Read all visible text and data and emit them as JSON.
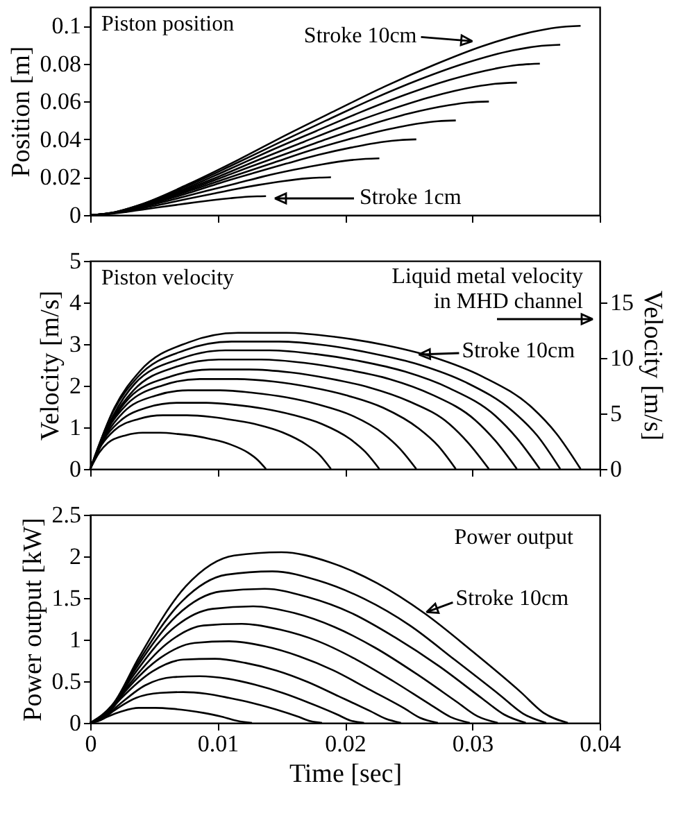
{
  "chart_data": [
    {
      "type": "line",
      "ylabel": "Position [m]",
      "xlim": [
        0,
        0.04
      ],
      "xticks": [
        0,
        0.01,
        0.02,
        0.03,
        0.04
      ],
      "ylim": [
        0,
        0.11
      ],
      "yticks": [
        0,
        0.02,
        0.04,
        0.06,
        0.08,
        0.1
      ],
      "tick_labels": "y",
      "grid": false,
      "legend": false,
      "marker": "none",
      "line_style": "solid",
      "annotations": [
        "Piston position",
        {
          "text": "Stroke 10cm",
          "x": 0.03,
          "y": 0.0919
        },
        "Stroke 1cm"
      ],
      "series": [
        {
          "color": "#000000",
          "x": [
            0,
            0.0007,
            0.0014,
            0.0028,
            0.0041,
            0.0055,
            0.0069,
            0.0083,
            0.0096,
            0.011,
            0.0124,
            0.0131,
            0.0138
          ],
          "values": [
            0,
            0.0002,
            0.0005,
            0.0016,
            0.0029,
            0.0042,
            0.0055,
            0.0068,
            0.0079,
            0.0089,
            0.0097,
            0.0099,
            0.01
          ]
        },
        {
          "color": "#000000",
          "x": [
            0,
            0.0009,
            0.0019,
            0.0038,
            0.0057,
            0.0076,
            0.0095,
            0.0113,
            0.0132,
            0.0151,
            0.017,
            0.018,
            0.0189
          ],
          "values": [
            0,
            0.0003,
            0.0011,
            0.0033,
            0.0058,
            0.0085,
            0.0111,
            0.0136,
            0.0159,
            0.0179,
            0.0194,
            0.0198,
            0.02
          ]
        },
        {
          "color": "#000000",
          "x": [
            0,
            0.0011,
            0.0023,
            0.0045,
            0.0068,
            0.0091,
            0.0114,
            0.0136,
            0.0159,
            0.0182,
            0.0204,
            0.0216,
            0.0227
          ],
          "values": [
            0,
            0.0005,
            0.0016,
            0.0049,
            0.0087,
            0.0127,
            0.0166,
            0.0204,
            0.0238,
            0.0268,
            0.029,
            0.0297,
            0.03
          ]
        },
        {
          "color": "#000000",
          "x": [
            0,
            0.0013,
            0.0026,
            0.0051,
            0.0077,
            0.0102,
            0.0128,
            0.0154,
            0.0179,
            0.0205,
            0.023,
            0.0243,
            0.0256
          ],
          "values": [
            0,
            0.0006,
            0.0022,
            0.0065,
            0.0116,
            0.017,
            0.0222,
            0.0272,
            0.0318,
            0.0357,
            0.0387,
            0.0396,
            0.04
          ]
        },
        {
          "color": "#000000",
          "x": [
            0,
            0.0014,
            0.0029,
            0.0057,
            0.0086,
            0.0115,
            0.0144,
            0.0172,
            0.0201,
            0.023,
            0.0258,
            0.0273,
            0.0287
          ],
          "values": [
            0,
            0.0008,
            0.0027,
            0.0082,
            0.0146,
            0.0212,
            0.0277,
            0.034,
            0.0397,
            0.0447,
            0.0484,
            0.0496,
            0.05
          ]
        },
        {
          "color": "#000000",
          "x": [
            0,
            0.0016,
            0.0031,
            0.0063,
            0.0094,
            0.0125,
            0.0157,
            0.0188,
            0.0219,
            0.025,
            0.0282,
            0.0297,
            0.0313
          ],
          "values": [
            0,
            0.0009,
            0.0032,
            0.0098,
            0.0175,
            0.0254,
            0.0332,
            0.0407,
            0.0476,
            0.0536,
            0.0581,
            0.0595,
            0.06
          ]
        },
        {
          "color": "#000000",
          "x": [
            0,
            0.0017,
            0.0034,
            0.0067,
            0.0101,
            0.0134,
            0.0168,
            0.0201,
            0.0235,
            0.0268,
            0.0302,
            0.0318,
            0.0335
          ],
          "values": [
            0,
            0.0011,
            0.0038,
            0.0114,
            0.0204,
            0.0297,
            0.0388,
            0.0475,
            0.0556,
            0.0625,
            0.0678,
            0.0694,
            0.07
          ]
        },
        {
          "color": "#000000",
          "x": [
            0,
            0.0018,
            0.0035,
            0.0071,
            0.0106,
            0.0141,
            0.0177,
            0.0212,
            0.0247,
            0.0282,
            0.0318,
            0.0335,
            0.0353
          ],
          "values": [
            0,
            0.0012,
            0.0043,
            0.013,
            0.0233,
            0.0339,
            0.0443,
            0.0543,
            0.0635,
            0.0714,
            0.0774,
            0.0793,
            0.08
          ]
        },
        {
          "color": "#000000",
          "x": [
            0,
            0.0018,
            0.0037,
            0.0074,
            0.0111,
            0.0148,
            0.0185,
            0.0221,
            0.0258,
            0.0295,
            0.0332,
            0.0351,
            0.0369
          ],
          "values": [
            0,
            0.0014,
            0.0049,
            0.0147,
            0.0262,
            0.0382,
            0.0499,
            0.0611,
            0.0715,
            0.0804,
            0.0871,
            0.0892,
            0.09
          ]
        },
        {
          "color": "#000000",
          "x": [
            0,
            0.0019,
            0.0039,
            0.0077,
            0.0116,
            0.0154,
            0.0193,
            0.0231,
            0.027,
            0.0308,
            0.0347,
            0.0366,
            0.0385
          ],
          "values": [
            0,
            0.0015,
            0.0054,
            0.0163,
            0.0291,
            0.0424,
            0.0554,
            0.0679,
            0.0794,
            0.0893,
            0.0968,
            0.0991,
            0.1
          ]
        }
      ]
    },
    {
      "type": "line",
      "ylabel": "Velocity [m/s]",
      "y2label": "Velocity [m/s]",
      "xlim": [
        0,
        0.04
      ],
      "xticks": [
        0,
        0.01,
        0.02,
        0.03,
        0.04
      ],
      "ylim": [
        0,
        5
      ],
      "yticks": [
        0,
        1,
        2,
        3,
        4,
        5
      ],
      "y2lim": [
        0,
        18.74
      ],
      "y2ticks": [
        0,
        5,
        10,
        15
      ],
      "tick_labels": "y",
      "grid": false,
      "legend": false,
      "marker": "none",
      "line_style": "solid",
      "annotations": [
        "Piston velocity",
        "Liquid metal velocity\nin MHD channel",
        {
          "text": "Stroke 10cm",
          "x": 0.0258,
          "y": 2.75
        }
      ],
      "series": [
        {
          "color": "#000000",
          "x": [
            0,
            0.0007,
            0.0014,
            0.0028,
            0.0041,
            0.0055,
            0.0069,
            0.0083,
            0.0096,
            0.011,
            0.0124,
            0.0131,
            0.0138
          ],
          "values": [
            0,
            0.39,
            0.63,
            0.81,
            0.87,
            0.87,
            0.84,
            0.79,
            0.71,
            0.59,
            0.39,
            0.23,
            0
          ]
        },
        {
          "color": "#000000",
          "x": [
            0,
            0.0009,
            0.0019,
            0.0038,
            0.0057,
            0.0076,
            0.0095,
            0.0113,
            0.0132,
            0.0151,
            0.017,
            0.018,
            0.0189
          ],
          "values": [
            0,
            0.58,
            0.93,
            1.2,
            1.29,
            1.29,
            1.25,
            1.17,
            1.06,
            0.88,
            0.58,
            0.34,
            0
          ]
        },
        {
          "color": "#000000",
          "x": [
            0,
            0.0011,
            0.0023,
            0.0045,
            0.0068,
            0.0091,
            0.0114,
            0.0136,
            0.0159,
            0.0182,
            0.0204,
            0.0216,
            0.0227
          ],
          "values": [
            0,
            0.72,
            1.14,
            1.48,
            1.59,
            1.59,
            1.54,
            1.45,
            1.3,
            1.08,
            0.72,
            0.41,
            0
          ]
        },
        {
          "color": "#000000",
          "x": [
            0,
            0.0013,
            0.0026,
            0.0051,
            0.0077,
            0.0102,
            0.0128,
            0.0154,
            0.0179,
            0.0205,
            0.023,
            0.0243,
            0.0256
          ],
          "values": [
            0,
            0.85,
            1.36,
            1.76,
            1.89,
            1.89,
            1.83,
            1.72,
            1.55,
            1.29,
            0.85,
            0.49,
            0
          ]
        },
        {
          "color": "#000000",
          "x": [
            0,
            0.0014,
            0.0029,
            0.0057,
            0.0086,
            0.0115,
            0.0144,
            0.0172,
            0.0201,
            0.023,
            0.0258,
            0.0273,
            0.0287
          ],
          "values": [
            0,
            0.97,
            1.56,
            2.01,
            2.16,
            2.16,
            2.1,
            1.97,
            1.77,
            1.47,
            0.97,
            0.56,
            0
          ]
        },
        {
          "color": "#000000",
          "x": [
            0,
            0.0016,
            0.0031,
            0.0063,
            0.0094,
            0.0125,
            0.0157,
            0.0188,
            0.0219,
            0.025,
            0.0282,
            0.0297,
            0.0313
          ],
          "values": [
            0,
            1.08,
            1.72,
            2.22,
            2.39,
            2.39,
            2.32,
            2.17,
            1.96,
            1.63,
            1.08,
            0.62,
            0
          ]
        },
        {
          "color": "#000000",
          "x": [
            0,
            0.0017,
            0.0034,
            0.0067,
            0.0101,
            0.0134,
            0.0168,
            0.0201,
            0.0235,
            0.0268,
            0.0302,
            0.0318,
            0.0335
          ],
          "values": [
            0,
            1.18,
            1.89,
            2.45,
            2.63,
            2.63,
            2.55,
            2.39,
            2.16,
            1.79,
            1.18,
            0.68,
            0
          ]
        },
        {
          "color": "#000000",
          "x": [
            0,
            0.0018,
            0.0035,
            0.0071,
            0.0106,
            0.0141,
            0.0177,
            0.0212,
            0.0247,
            0.0282,
            0.0318,
            0.0335,
            0.0353
          ],
          "values": [
            0,
            1.28,
            2.05,
            2.65,
            2.85,
            2.85,
            2.76,
            2.59,
            2.34,
            1.94,
            1.28,
            0.74,
            0
          ]
        },
        {
          "color": "#000000",
          "x": [
            0,
            0.0018,
            0.0037,
            0.0074,
            0.0111,
            0.0148,
            0.0185,
            0.0221,
            0.0258,
            0.0295,
            0.0332,
            0.0351,
            0.0369
          ],
          "values": [
            0,
            1.38,
            2.2,
            2.85,
            3.06,
            3.06,
            2.97,
            2.78,
            2.51,
            2.08,
            1.38,
            0.8,
            0
          ]
        },
        {
          "color": "#000000",
          "x": [
            0,
            0.0019,
            0.0039,
            0.0077,
            0.0116,
            0.0154,
            0.0193,
            0.0231,
            0.027,
            0.0308,
            0.0347,
            0.0366,
            0.0385
          ],
          "values": [
            0,
            1.47,
            2.35,
            3.04,
            3.27,
            3.27,
            3.17,
            2.98,
            2.68,
            2.22,
            1.47,
            0.85,
            0
          ]
        }
      ]
    },
    {
      "type": "line",
      "xlabel": "Time [sec]",
      "ylabel": "Power output [kW]",
      "xlim": [
        0,
        0.04
      ],
      "xticks": [
        0,
        0.01,
        0.02,
        0.03,
        0.04
      ],
      "ylim": [
        0,
        2.5
      ],
      "yticks": [
        0,
        0.5,
        1,
        1.5,
        2,
        2.5
      ],
      "grid": false,
      "legend": false,
      "marker": "none",
      "line_style": "solid",
      "annotations": [
        "Power output",
        {
          "text": "Stroke 10cm",
          "x": 0.0264,
          "y": 1.33
        }
      ],
      "series": [
        {
          "color": "#000000",
          "x": [
            0,
            0.0006,
            0.0013,
            0.0025,
            0.0038,
            0.0051,
            0.0064,
            0.0076,
            0.0089,
            0.0102,
            0.0114,
            0.0121,
            0.0127
          ],
          "values": [
            0,
            0.02,
            0.07,
            0.14,
            0.18,
            0.18,
            0.17,
            0.15,
            0.12,
            0.08,
            0.03,
            0.01,
            0
          ]
        },
        {
          "color": "#000000",
          "x": [
            0,
            0.0009,
            0.0018,
            0.0036,
            0.0055,
            0.0073,
            0.0091,
            0.0109,
            0.0127,
            0.0146,
            0.0164,
            0.0173,
            0.0182
          ],
          "values": [
            0,
            0.04,
            0.14,
            0.3,
            0.36,
            0.37,
            0.35,
            0.3,
            0.24,
            0.16,
            0.07,
            0.02,
            0
          ]
        },
        {
          "color": "#000000",
          "x": [
            0,
            0.0011,
            0.0022,
            0.0043,
            0.0065,
            0.0086,
            0.0108,
            0.0129,
            0.0151,
            0.0172,
            0.0194,
            0.0204,
            0.0215
          ],
          "values": [
            0,
            0.07,
            0.21,
            0.45,
            0.55,
            0.56,
            0.53,
            0.46,
            0.36,
            0.24,
            0.1,
            0.03,
            0
          ]
        },
        {
          "color": "#000000",
          "x": [
            0,
            0.0012,
            0.0024,
            0.0049,
            0.0073,
            0.0098,
            0.0122,
            0.0146,
            0.0171,
            0.0195,
            0.022,
            0.0232,
            0.0244
          ],
          "values": [
            0,
            0.09,
            0.29,
            0.62,
            0.76,
            0.77,
            0.72,
            0.63,
            0.49,
            0.32,
            0.14,
            0.05,
            0
          ]
        },
        {
          "color": "#000000",
          "x": [
            0,
            0.0014,
            0.0027,
            0.0055,
            0.0082,
            0.0109,
            0.0137,
            0.0164,
            0.0191,
            0.0218,
            0.0246,
            0.0259,
            0.0273
          ],
          "values": [
            0,
            0.12,
            0.37,
            0.78,
            0.96,
            0.98,
            0.92,
            0.8,
            0.63,
            0.41,
            0.18,
            0.06,
            0
          ]
        },
        {
          "color": "#000000",
          "x": [
            0,
            0.0015,
            0.003,
            0.006,
            0.0089,
            0.0119,
            0.0149,
            0.0179,
            0.0209,
            0.0238,
            0.0268,
            0.0283,
            0.0298
          ],
          "values": [
            0,
            0.14,
            0.45,
            0.95,
            1.17,
            1.19,
            1.12,
            0.98,
            0.76,
            0.5,
            0.21,
            0.07,
            0
          ]
        },
        {
          "color": "#000000",
          "x": [
            0,
            0.0016,
            0.0032,
            0.0064,
            0.0096,
            0.0128,
            0.016,
            0.0192,
            0.0224,
            0.0256,
            0.0288,
            0.0304,
            0.032
          ],
          "values": [
            0,
            0.17,
            0.53,
            1.12,
            1.37,
            1.4,
            1.32,
            1.15,
            0.9,
            0.59,
            0.25,
            0.08,
            0
          ]
        },
        {
          "color": "#000000",
          "x": [
            0,
            0.0017,
            0.0034,
            0.0068,
            0.0103,
            0.0137,
            0.0171,
            0.0205,
            0.0239,
            0.0274,
            0.0308,
            0.0325,
            0.0342
          ],
          "values": [
            0,
            0.19,
            0.61,
            1.29,
            1.58,
            1.61,
            1.51,
            1.32,
            1.03,
            0.68,
            0.29,
            0.1,
            0
          ]
        },
        {
          "color": "#000000",
          "x": [
            0,
            0.0018,
            0.0036,
            0.0072,
            0.0107,
            0.0143,
            0.0179,
            0.0215,
            0.0251,
            0.0286,
            0.0322,
            0.034,
            0.0358
          ],
          "values": [
            0,
            0.22,
            0.69,
            1.46,
            1.78,
            1.82,
            1.71,
            1.49,
            1.17,
            0.76,
            0.33,
            0.11,
            0
          ]
        },
        {
          "color": "#000000",
          "x": [
            0,
            0.0019,
            0.0038,
            0.0075,
            0.0113,
            0.015,
            0.0188,
            0.0225,
            0.0263,
            0.03,
            0.0338,
            0.0356,
            0.0375
          ],
          "values": [
            0,
            0.25,
            0.78,
            1.64,
            2.01,
            2.05,
            1.93,
            1.68,
            1.31,
            0.86,
            0.37,
            0.12,
            0
          ]
        }
      ]
    }
  ]
}
